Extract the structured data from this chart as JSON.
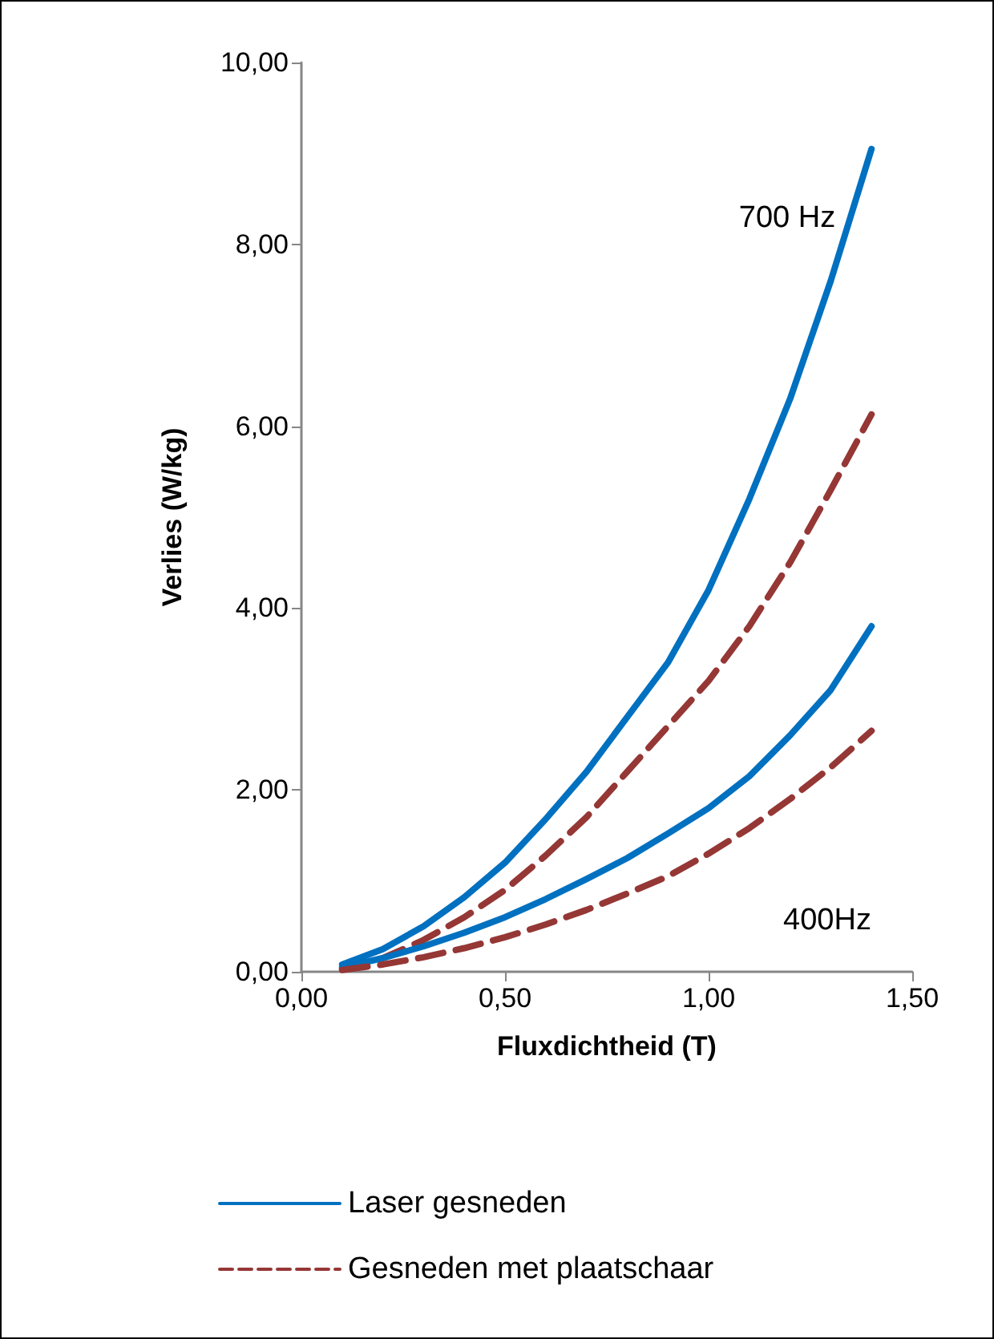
{
  "chart_data": {
    "type": "line",
    "xlabel": "Fluxdichtheid (T)",
    "ylabel": "Verlies (W/kg)",
    "x": [
      0.1,
      0.2,
      0.3,
      0.4,
      0.5,
      0.6,
      0.7,
      0.8,
      0.9,
      1.0,
      1.1,
      1.2,
      1.3,
      1.4
    ],
    "series": [
      {
        "name": "Laser gesneden",
        "color": "#0070c0",
        "line_style": "solid",
        "values": [
          0.08,
          0.25,
          0.5,
          0.82,
          1.2,
          1.68,
          2.2,
          2.8,
          3.4,
          4.2,
          5.2,
          6.3,
          7.6,
          9.05
        ]
      },
      {
        "name": "Gesneden met plaatschaar",
        "color": "#953735",
        "line_style": "dashed",
        "values": [
          0.03,
          0.15,
          0.35,
          0.6,
          0.9,
          1.28,
          1.7,
          2.2,
          2.7,
          3.2,
          3.8,
          4.5,
          5.3,
          6.13
        ]
      },
      {
        "color": "#0070c0",
        "line_style": "solid",
        "values": [
          0.05,
          0.15,
          0.28,
          0.43,
          0.6,
          0.8,
          1.02,
          1.25,
          1.52,
          1.8,
          2.15,
          2.6,
          3.1,
          3.8
        ]
      },
      {
        "color": "#953735",
        "line_style": "dashed",
        "values": [
          0.02,
          0.08,
          0.16,
          0.26,
          0.38,
          0.52,
          0.68,
          0.86,
          1.05,
          1.3,
          1.58,
          1.9,
          2.25,
          2.65
        ]
      }
    ],
    "xlim": [
      0,
      1.5
    ],
    "xticks": [
      {
        "value": 0,
        "label": "0,00"
      },
      {
        "value": 0.5,
        "label": "0,50"
      },
      {
        "value": 1,
        "label": "1,00"
      },
      {
        "value": 1.5,
        "label": "1,50"
      }
    ],
    "ylim": [
      0,
      10
    ],
    "yticks": [
      {
        "value": 0,
        "label": "0,00"
      },
      {
        "value": 2,
        "label": "2,00"
      },
      {
        "value": 4,
        "label": "4,00"
      },
      {
        "value": 6,
        "label": "6,00"
      },
      {
        "value": 8,
        "label": "8,00"
      },
      {
        "value": 10,
        "label": "10,00"
      }
    ],
    "annotations": [
      "700 Hz",
      "400Hz"
    ],
    "legend": "bottom",
    "grid": false,
    "marker": "none"
  }
}
